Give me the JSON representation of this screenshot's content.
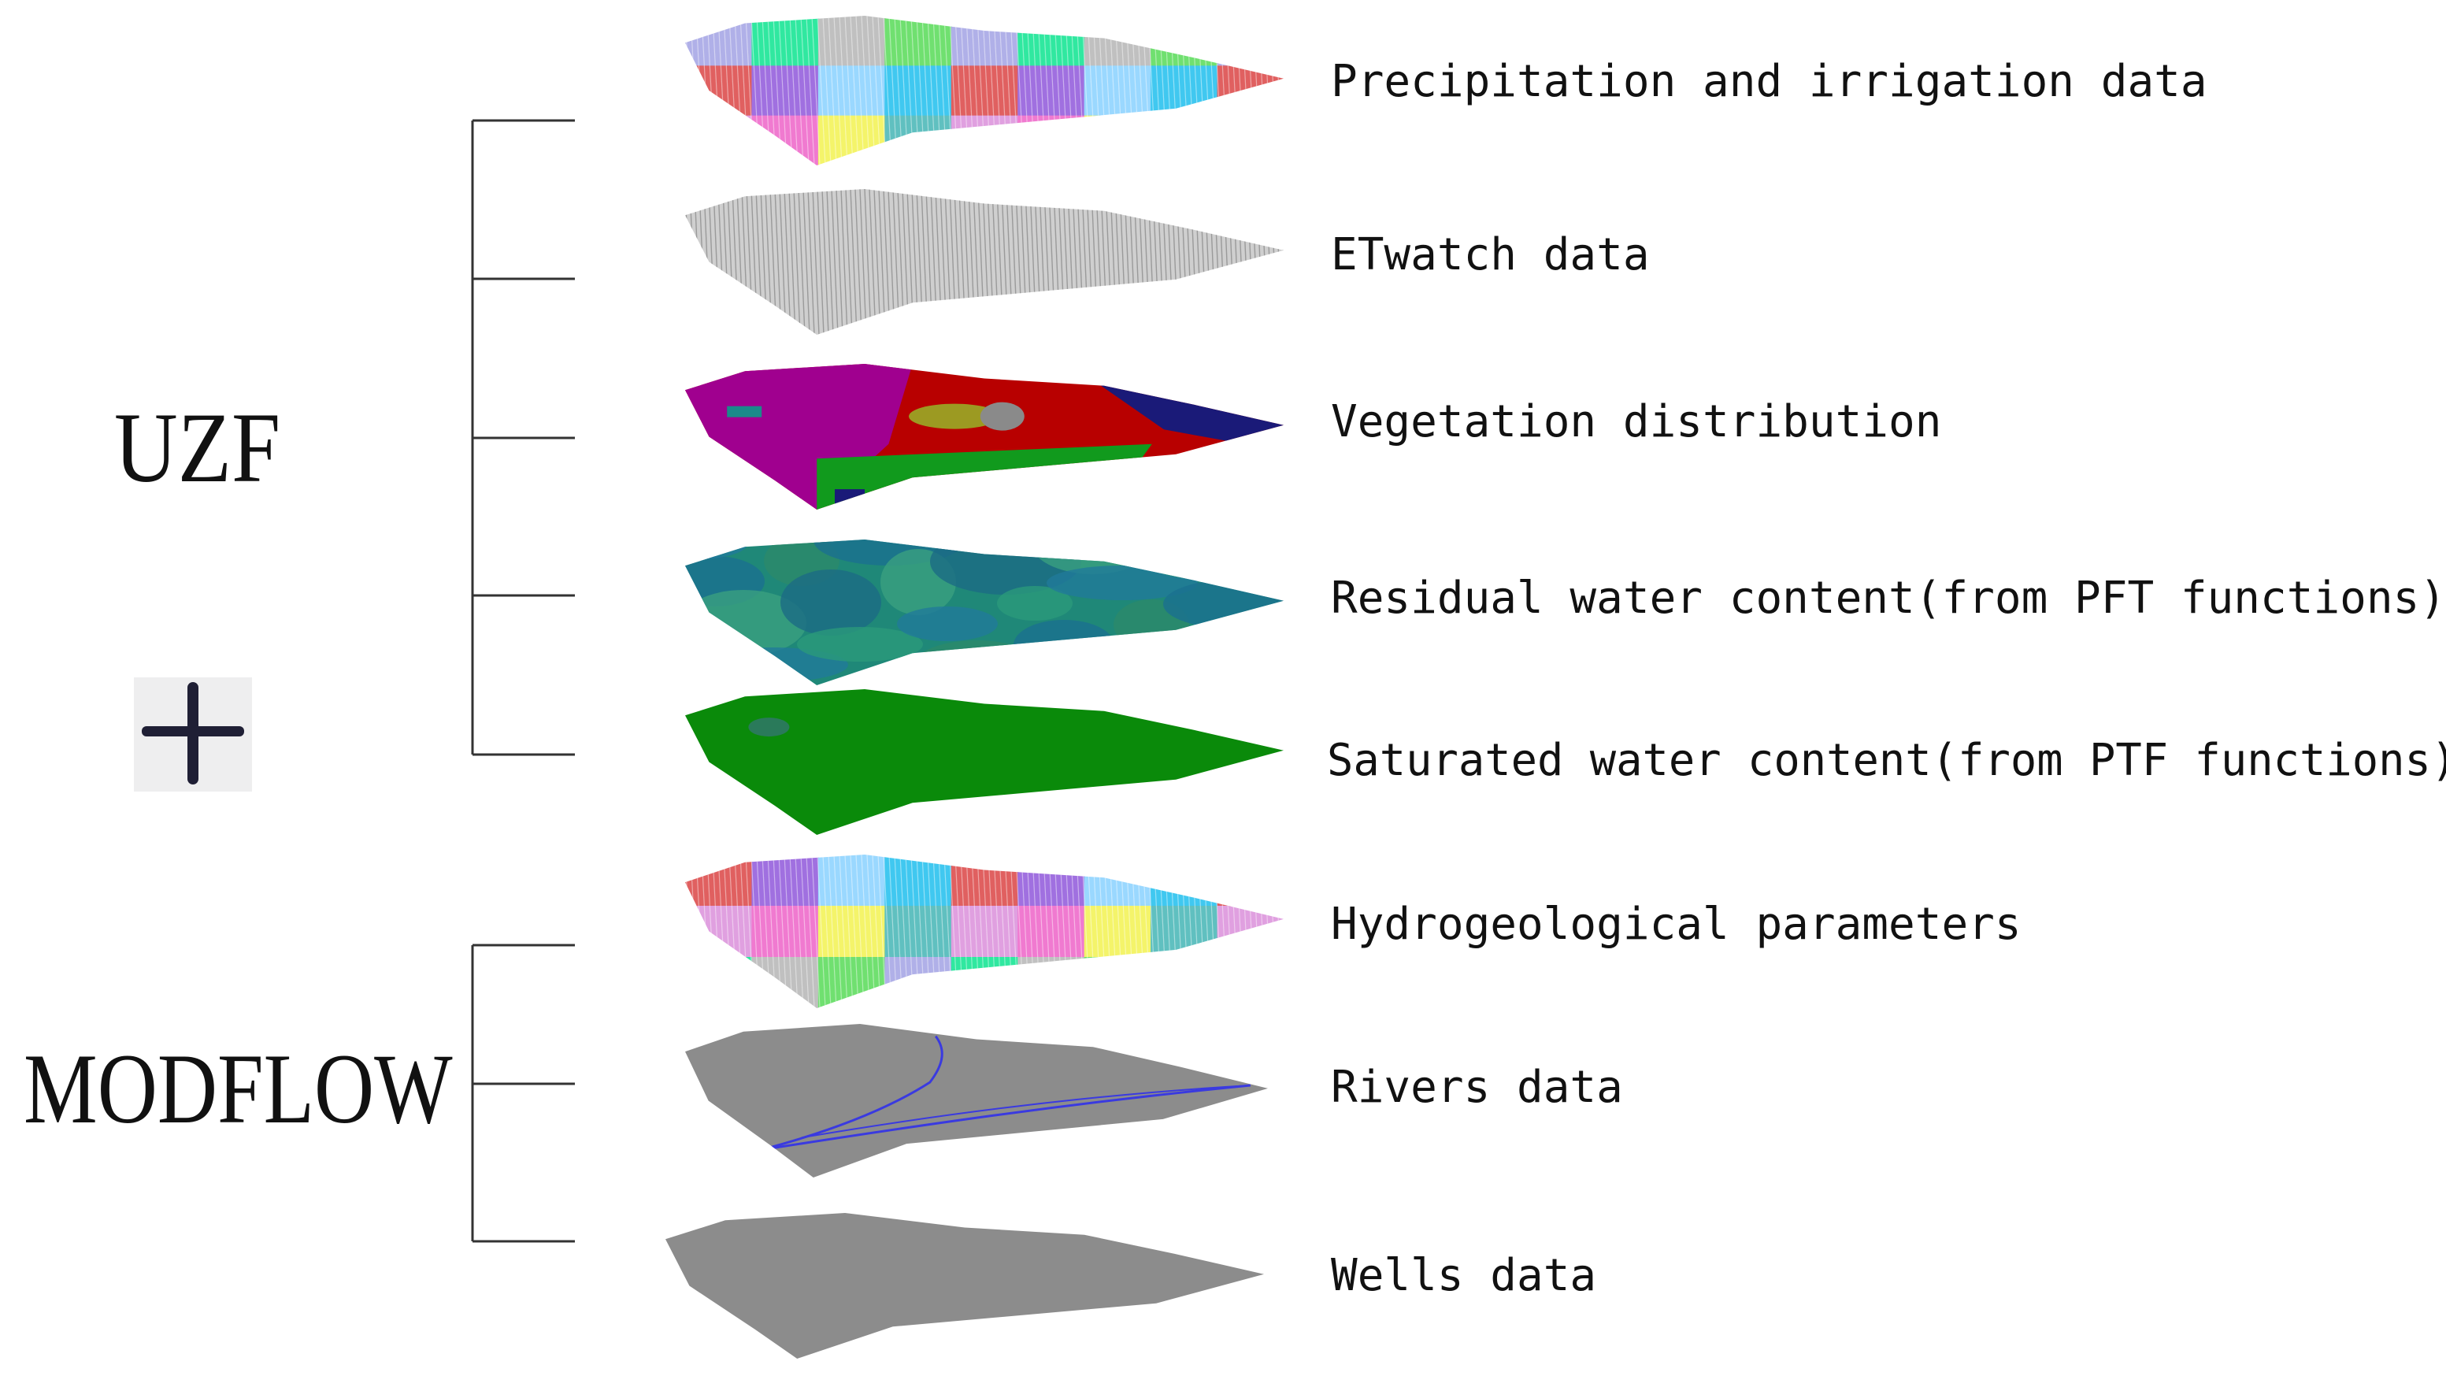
{
  "groups": {
    "uzf": "UZF",
    "modflow": "MODFLOW",
    "plus": "+"
  },
  "layers": [
    {
      "label": "Precipitation and irrigation data",
      "style": "mosaic"
    },
    {
      "label": "ETwatch data",
      "style": "gray-grid"
    },
    {
      "label": "Vegetation distribution",
      "style": "vegetation"
    },
    {
      "label": "Residual water content(from PFT functions)",
      "style": "teal"
    },
    {
      "label": "Saturated water content(from PTF functions)",
      "style": "green"
    },
    {
      "label": "Hydrogeological parameters",
      "style": "mosaic"
    },
    {
      "label": "Rivers data",
      "style": "rivers"
    },
    {
      "label": "Wells data",
      "style": "gray"
    }
  ],
  "colors": {
    "bracket": "#333333",
    "text": "#111111",
    "plus": "#1f1f35",
    "plus_bg": "#eeeeef",
    "gray_surface": "#8c8c8c",
    "grid_surface": "#cfcfcf",
    "green_surface": "#0a8a0a",
    "teal_surface": "#1f8878",
    "river": "#3a3ae0",
    "veg_magenta": "#a0008f",
    "veg_red": "#b80000",
    "veg_green": "#119a1d",
    "veg_navy": "#1a1a78",
    "veg_olive": "#9c9a22",
    "mosaic": [
      "#9ad8ff",
      "#b0b0e8",
      "#f07ad0",
      "#40c8f0",
      "#30e8a0",
      "#f4f46a",
      "#e06060",
      "#c0c0c0",
      "#60c0c0",
      "#a070e0",
      "#70e070",
      "#e0a0e0"
    ]
  }
}
